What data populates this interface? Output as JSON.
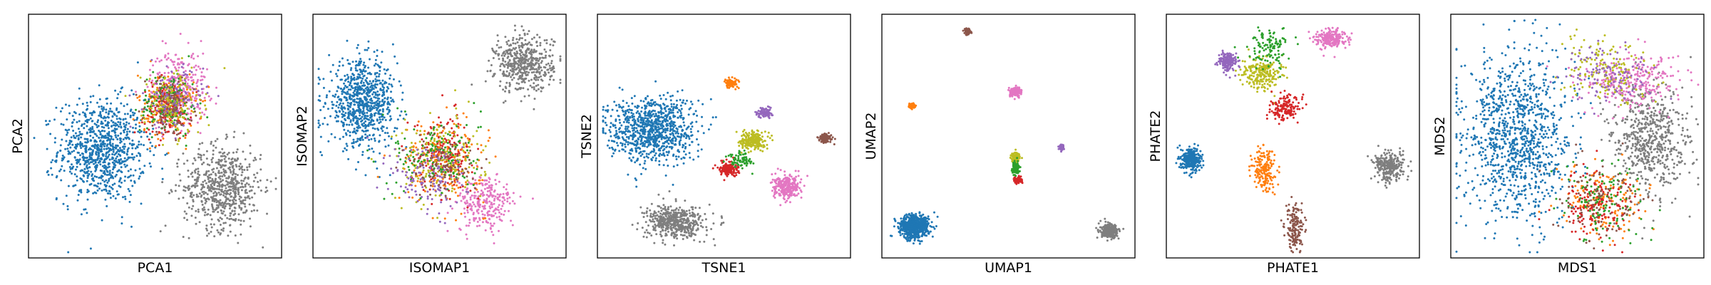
{
  "chart_data": [
    {
      "type": "scatter",
      "xlabel": "PCA1",
      "ylabel": "PCA2",
      "xlim": [
        0,
        100
      ],
      "ylim": [
        0,
        100
      ],
      "ticks": "none",
      "clusters": [
        {
          "color": "#1f77b4",
          "center": [
            28,
            44
          ],
          "spread": [
            9,
            11
          ],
          "n": 900
        },
        {
          "color": "#7f7f7f",
          "center": [
            78,
            28
          ],
          "spread": [
            8,
            9
          ],
          "n": 650
        },
        {
          "color": "#e377c2",
          "center": [
            60,
            71
          ],
          "spread": [
            6,
            8
          ],
          "n": 300
        },
        {
          "color": "#ff7f0e",
          "center": [
            55,
            63
          ],
          "spread": [
            6,
            7
          ],
          "n": 160
        },
        {
          "color": "#d62728",
          "center": [
            55,
            62
          ],
          "spread": [
            5,
            6
          ],
          "n": 160
        },
        {
          "color": "#2ca02c",
          "center": [
            56,
            64
          ],
          "spread": [
            6,
            7
          ],
          "n": 130
        },
        {
          "color": "#bcbd22",
          "center": [
            57,
            64
          ],
          "spread": [
            6,
            7
          ],
          "n": 150
        },
        {
          "color": "#9467bd",
          "center": [
            58,
            66
          ],
          "spread": [
            6,
            7
          ],
          "n": 100
        },
        {
          "color": "#8c564b",
          "center": [
            56,
            63
          ],
          "spread": [
            5,
            6
          ],
          "n": 90
        }
      ]
    },
    {
      "type": "scatter",
      "xlabel": "ISOMAP1",
      "ylabel": "ISOMAP2",
      "xlim": [
        0,
        100
      ],
      "ylim": [
        0,
        100
      ],
      "ticks": "none",
      "clusters": [
        {
          "color": "#1f77b4",
          "center": [
            18,
            64
          ],
          "spread": [
            7,
            9
          ],
          "n": 800
        },
        {
          "color": "#7f7f7f",
          "center": [
            85,
            81
          ],
          "spread": [
            6,
            6
          ],
          "n": 500
        },
        {
          "color": "#e377c2",
          "center": [
            69,
            21
          ],
          "spread": [
            6,
            6
          ],
          "n": 260
        },
        {
          "color": "#d62728",
          "center": [
            52,
            43
          ],
          "spread": [
            6,
            8
          ],
          "n": 200
        },
        {
          "color": "#ff7f0e",
          "center": [
            51,
            39
          ],
          "spread": [
            9,
            9
          ],
          "n": 170
        },
        {
          "color": "#bcbd22",
          "center": [
            50,
            40
          ],
          "spread": [
            9,
            9
          ],
          "n": 170
        },
        {
          "color": "#2ca02c",
          "center": [
            49,
            41
          ],
          "spread": [
            9,
            9
          ],
          "n": 130
        },
        {
          "color": "#9467bd",
          "center": [
            46,
            32
          ],
          "spread": [
            8,
            8
          ],
          "n": 130
        },
        {
          "color": "#8c564b",
          "center": [
            52,
            38
          ],
          "spread": [
            7,
            7
          ],
          "n": 90
        }
      ]
    },
    {
      "type": "scatter",
      "xlabel": "TSNE1",
      "ylabel": "TSNE2",
      "xlim": [
        0,
        100
      ],
      "ylim": [
        0,
        100
      ],
      "ticks": "none",
      "clusters": [
        {
          "color": "#1f77b4",
          "center": [
            20,
            53
          ],
          "spread": [
            9,
            7
          ],
          "n": 900
        },
        {
          "color": "#7f7f7f",
          "center": [
            30,
            13
          ],
          "spread": [
            6,
            3.5
          ],
          "n": 500
        },
        {
          "color": "#e377c2",
          "center": [
            76,
            28
          ],
          "spread": [
            3,
            2.5
          ],
          "n": 260
        },
        {
          "color": "#bcbd22",
          "center": [
            62,
            48
          ],
          "spread": [
            2.5,
            2
          ],
          "n": 220
        },
        {
          "color": "#d62728",
          "center": [
            52,
            36
          ],
          "spread": [
            2,
            1.5
          ],
          "n": 160
        },
        {
          "color": "#2ca02c",
          "center": [
            57,
            40
          ],
          "spread": [
            2.5,
            2
          ],
          "n": 70
        },
        {
          "color": "#9467bd",
          "center": [
            67,
            60
          ],
          "spread": [
            1.5,
            1
          ],
          "n": 100
        },
        {
          "color": "#ff7f0e",
          "center": [
            53,
            73
          ],
          "spread": [
            1.5,
            1
          ],
          "n": 100
        },
        {
          "color": "#8c564b",
          "center": [
            92,
            49
          ],
          "spread": [
            1.5,
            1
          ],
          "n": 100
        }
      ]
    },
    {
      "type": "scatter",
      "xlabel": "UMAP1",
      "ylabel": "UMAP2",
      "xlim": [
        0,
        100
      ],
      "ylim": [
        0,
        100
      ],
      "ticks": "none",
      "clusters": [
        {
          "color": "#1f77b4",
          "center": [
            11,
            11
          ],
          "spread": [
            3,
            2.5
          ],
          "n": 700
        },
        {
          "color": "#7f7f7f",
          "center": [
            92,
            9
          ],
          "spread": [
            1.8,
            1.4
          ],
          "n": 300
        },
        {
          "color": "#e377c2",
          "center": [
            53,
            69
          ],
          "spread": [
            1.2,
            1
          ],
          "n": 150
        },
        {
          "color": "#bcbd22",
          "center": [
            53,
            41
          ],
          "spread": [
            1,
            1
          ],
          "n": 120
        },
        {
          "color": "#2ca02c",
          "center": [
            53,
            36
          ],
          "spread": [
            0.7,
            1.4
          ],
          "n": 90
        },
        {
          "color": "#d62728",
          "center": [
            54,
            31
          ],
          "spread": [
            0.8,
            0.8
          ],
          "n": 90
        },
        {
          "color": "#9467bd",
          "center": [
            72,
            45
          ],
          "spread": [
            0.6,
            0.6
          ],
          "n": 60
        },
        {
          "color": "#ff7f0e",
          "center": [
            10,
            63
          ],
          "spread": [
            0.6,
            0.6
          ],
          "n": 60
        },
        {
          "color": "#8c564b",
          "center": [
            33,
            95
          ],
          "spread": [
            0.7,
            0.6
          ],
          "n": 60
        }
      ]
    },
    {
      "type": "scatter",
      "xlabel": "PHATE1",
      "ylabel": "PHATE2",
      "xlim": [
        0,
        100
      ],
      "ylim": [
        0,
        100
      ],
      "ticks": "none",
      "clusters": [
        {
          "color": "#1f77b4",
          "center": [
            8,
            40
          ],
          "spread": [
            2,
            2.5
          ],
          "n": 300
        },
        {
          "color": "#7f7f7f",
          "center": [
            90,
            37
          ],
          "spread": [
            3,
            3
          ],
          "n": 300
        },
        {
          "color": "#e377c2",
          "center": [
            66,
            92
          ],
          "spread": [
            3,
            2
          ],
          "n": 220
        },
        {
          "color": "#bcbd22",
          "center": [
            37,
            77
          ],
          "spread": [
            4,
            3.5
          ],
          "n": 220
        },
        {
          "color": "#9467bd",
          "center": [
            23,
            82
          ],
          "spread": [
            2,
            2
          ],
          "n": 160
        },
        {
          "color": "#d62728",
          "center": [
            47,
            62
          ],
          "spread": [
            3,
            2.5
          ],
          "n": 160
        },
        {
          "color": "#ff7f0e",
          "center": [
            38,
            36
          ],
          "spread": [
            2.5,
            5
          ],
          "n": 180
        },
        {
          "color": "#8c564b",
          "center": [
            51,
            10
          ],
          "spread": [
            2,
            5
          ],
          "n": 160
        },
        {
          "color": "#2ca02c",
          "center": [
            40,
            88
          ],
          "spread": [
            4,
            4
          ],
          "n": 120
        }
      ]
    },
    {
      "type": "scatter",
      "xlabel": "MDS1",
      "ylabel": "MDS2",
      "xlim": [
        0,
        100
      ],
      "ylim": [
        0,
        100
      ],
      "ticks": "none",
      "clusters": [
        {
          "color": "#1f77b4",
          "center": [
            25,
            50
          ],
          "spread": [
            11,
            18
          ],
          "n": 1100
        },
        {
          "color": "#7f7f7f",
          "center": [
            80,
            47
          ],
          "spread": [
            8,
            12
          ],
          "n": 600
        },
        {
          "color": "#e377c2",
          "center": [
            73,
            74
          ],
          "spread": [
            10,
            6
          ],
          "n": 280
        },
        {
          "color": "#ff7f0e",
          "center": [
            60,
            22
          ],
          "spread": [
            9,
            8
          ],
          "n": 160
        },
        {
          "color": "#d62728",
          "center": [
            58,
            20
          ],
          "spread": [
            8,
            7
          ],
          "n": 160
        },
        {
          "color": "#bcbd22",
          "center": [
            62,
            78
          ],
          "spread": [
            9,
            7
          ],
          "n": 160
        },
        {
          "color": "#2ca02c",
          "center": [
            61,
            21
          ],
          "spread": [
            9,
            8
          ],
          "n": 120
        },
        {
          "color": "#9467bd",
          "center": [
            64,
            76
          ],
          "spread": [
            9,
            7
          ],
          "n": 120
        },
        {
          "color": "#8c564b",
          "center": [
            60,
            24
          ],
          "spread": [
            9,
            8
          ],
          "n": 100
        }
      ]
    }
  ]
}
